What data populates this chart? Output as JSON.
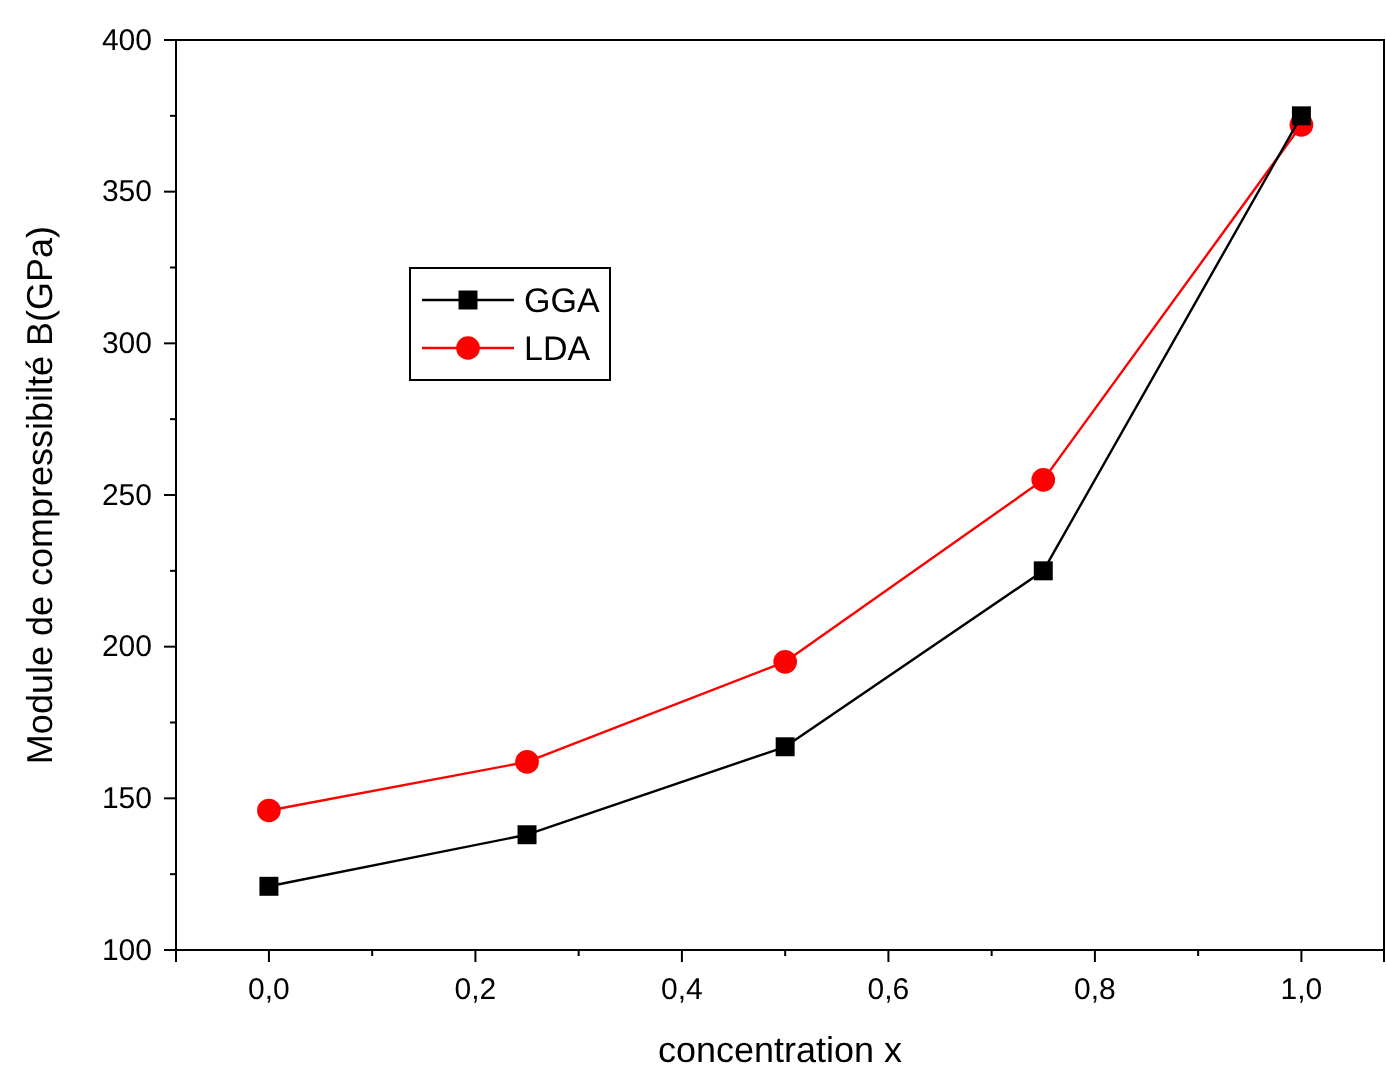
{
  "chart_data": {
    "type": "line",
    "xlabel": "concentration x",
    "ylabel": "Module de compressibilté B(GPa)",
    "x": [
      0,
      0.25,
      0.5,
      0.75,
      1.0
    ],
    "series": [
      {
        "name": "GGA",
        "color": "#000000",
        "marker": "square",
        "values": [
          121,
          138,
          167,
          225,
          375
        ]
      },
      {
        "name": "LDA",
        "color": "#ff0000",
        "marker": "circle",
        "values": [
          146,
          162,
          195,
          255,
          372
        ]
      }
    ],
    "xlim": [
      -0.09,
      1.08
    ],
    "ylim": [
      100,
      400
    ],
    "xticks": [
      {
        "value": 0,
        "label": "0,0"
      },
      {
        "value": 0.2,
        "label": "0,2"
      },
      {
        "value": 0.4,
        "label": "0,4"
      },
      {
        "value": 0.6,
        "label": "0,6"
      },
      {
        "value": 0.8,
        "label": "0,8"
      },
      {
        "value": 1.0,
        "label": "1,0"
      }
    ],
    "yticks": [
      100,
      150,
      200,
      250,
      300,
      350,
      400
    ],
    "grid": false,
    "legend": "top left",
    "line_style": "solid"
  }
}
